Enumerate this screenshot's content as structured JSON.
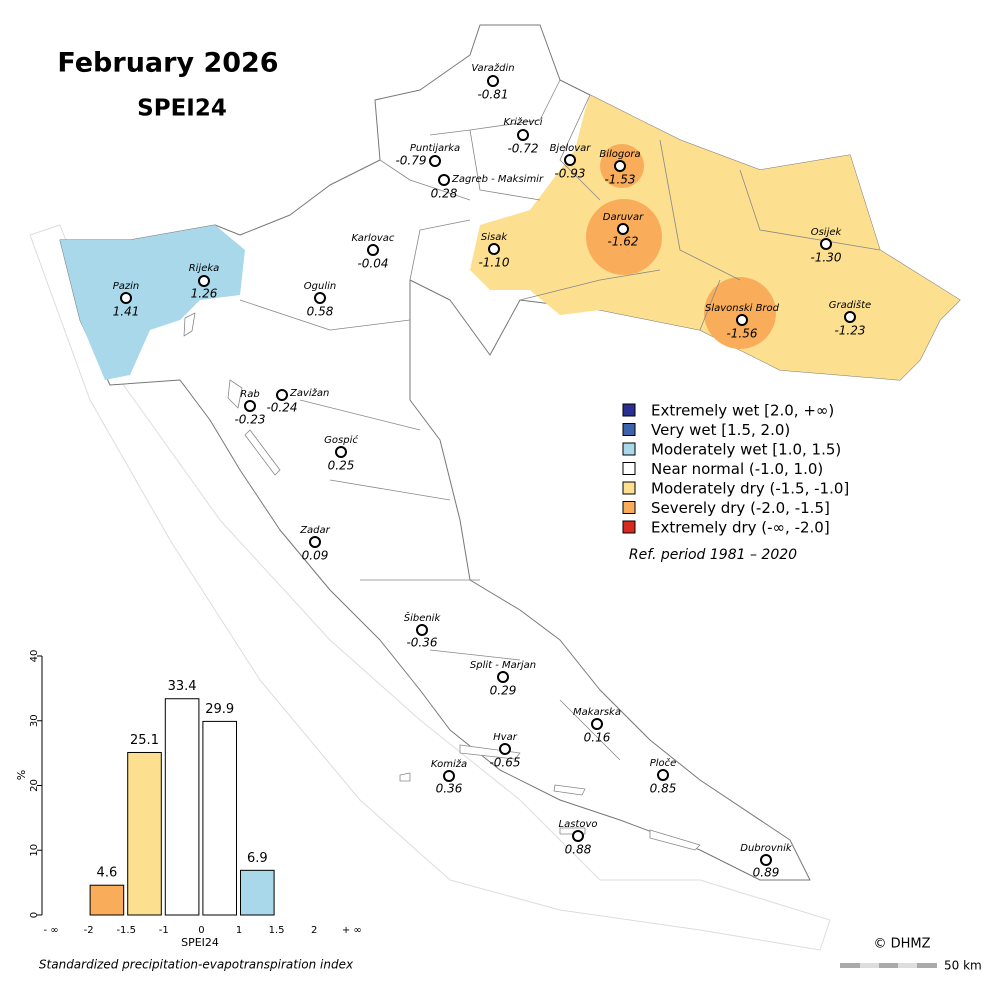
{
  "header": {
    "title": "February 2026",
    "subtitle": "SPEI24"
  },
  "stations": [
    {
      "name": "Varaždin",
      "value": "-0.81"
    },
    {
      "name": "Križevci",
      "value": "-0.72"
    },
    {
      "name": "Puntijarka",
      "value": "-0.79"
    },
    {
      "name": "Bjelovar",
      "value": "-0.93"
    },
    {
      "name": "Bilogora",
      "value": "-1.53"
    },
    {
      "name": "Zagreb - Maksimir",
      "value": "0.28"
    },
    {
      "name": "Daruvar",
      "value": "-1.62"
    },
    {
      "name": "Sisak",
      "value": "-1.10"
    },
    {
      "name": "Karlovac",
      "value": "-0.04"
    },
    {
      "name": "Osijek",
      "value": "-1.30"
    },
    {
      "name": "Pazin",
      "value": "1.41"
    },
    {
      "name": "Rijeka",
      "value": "1.26"
    },
    {
      "name": "Ogulin",
      "value": "0.58"
    },
    {
      "name": "Slavonski Brod",
      "value": "-1.56"
    },
    {
      "name": "Gradište",
      "value": "-1.23"
    },
    {
      "name": "Rab",
      "value": "-0.23"
    },
    {
      "name": "Zavižan",
      "value": "-0.24"
    },
    {
      "name": "Gospić",
      "value": "0.25"
    },
    {
      "name": "Zadar",
      "value": "0.09"
    },
    {
      "name": "Šibenik",
      "value": "-0.36"
    },
    {
      "name": "Split - Marjan",
      "value": "0.29"
    },
    {
      "name": "Makarska",
      "value": "0.16"
    },
    {
      "name": "Hvar",
      "value": "-0.65"
    },
    {
      "name": "Ploče",
      "value": "0.85"
    },
    {
      "name": "Komiža",
      "value": "0.36"
    },
    {
      "name": "Lastovo",
      "value": "0.88"
    },
    {
      "name": "Dubrovnik",
      "value": "0.89"
    }
  ],
  "legend": {
    "items": [
      {
        "label": "Extremely wet [2.0, +∞)",
        "color": "#2b2f8f"
      },
      {
        "label": "Very wet [1.5, 2.0)",
        "color": "#3b64ad"
      },
      {
        "label": "Moderately wet [1.0, 1.5)",
        "color": "#a8d8ea"
      },
      {
        "label": "Near normal (-1.0, 1.0)",
        "color": "#ffffff"
      },
      {
        "label": "Moderately dry (-1.5, -1.0]",
        "color": "#fddf90"
      },
      {
        "label": "Severely dry (-2.0, -1.5]",
        "color": "#f9ad5b"
      },
      {
        "label": "Extremely dry (-∞, -2.0]",
        "color": "#d7291f"
      }
    ],
    "note": "Ref. period 1981 – 2020"
  },
  "chart_data": {
    "type": "bar",
    "bin_edges": [
      "- ∞",
      "-2",
      "-1.5",
      "-1",
      "0",
      "1",
      "1.5",
      "2",
      "+ ∞"
    ],
    "values": [
      0,
      4.6,
      25.1,
      33.4,
      29.9,
      6.9,
      0,
      0
    ],
    "colors": [
      "#d7291f",
      "#f9ad5b",
      "#fddf90",
      "#ffffff",
      "#ffffff",
      "#a8d8ea",
      "#3b64ad",
      "#2b2f8f"
    ],
    "ylim": [
      0,
      40
    ],
    "yticks": [
      0,
      10,
      20,
      30,
      40
    ],
    "xlabel": "SPEI24",
    "ylabel": "%",
    "caption": "Standardized precipitation-evapotranspiration index"
  },
  "footer": {
    "credit": "© DHMZ",
    "scale": "50 km"
  }
}
